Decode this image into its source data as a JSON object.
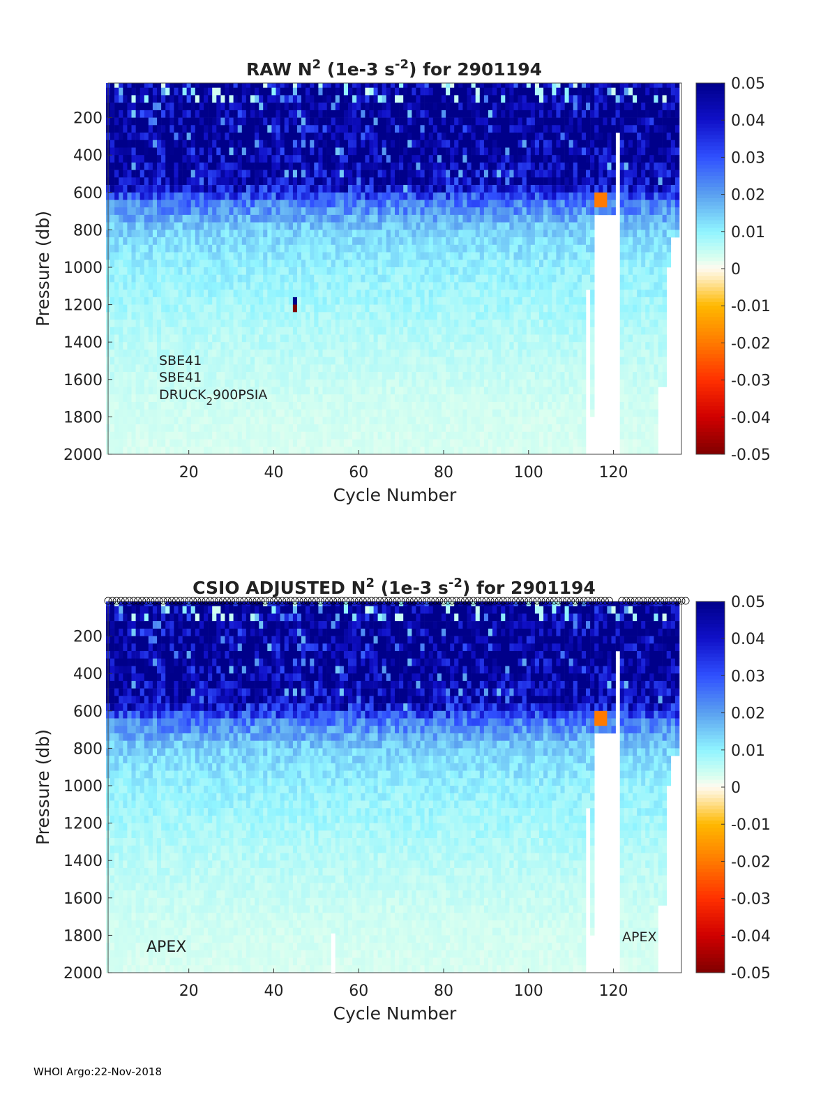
{
  "footer": "WHOI Argo:22-Nov-2018",
  "colormap": {
    "stops": [
      [
        -0.05,
        "#800000"
      ],
      [
        -0.04,
        "#d00000"
      ],
      [
        -0.03,
        "#ff3000"
      ],
      [
        -0.02,
        "#ff7a00"
      ],
      [
        -0.01,
        "#ffb800"
      ],
      [
        -0.003,
        "#ffe9b0"
      ],
      [
        0,
        "#fffaf0"
      ],
      [
        0.003,
        "#d8fff0"
      ],
      [
        0.01,
        "#90f4ff"
      ],
      [
        0.02,
        "#5aa0f0"
      ],
      [
        0.03,
        "#3050ff"
      ],
      [
        0.04,
        "#1010c8"
      ],
      [
        0.05,
        "#00008a"
      ]
    ]
  },
  "chart_data": [
    {
      "type": "heatmap",
      "title": "RAW N",
      "title_sup": "2",
      "title_mid": " (1e-3 s",
      "title_sup2": "-2",
      "title_end": ") for 2901194",
      "xlabel": "Cycle Number",
      "ylabel": "Pressure (db)",
      "xlim": [
        1,
        136
      ],
      "ylim": [
        15,
        2000
      ],
      "xticks": [
        "20",
        "40",
        "60",
        "80",
        "100",
        "120"
      ],
      "yticks": [
        "200",
        "400",
        "600",
        "800",
        "1000",
        "1200",
        "1400",
        "1600",
        "1800",
        "2000"
      ],
      "clim": [
        -0.05,
        0.05
      ],
      "cticks": [
        "0.05",
        "0.04",
        "0.03",
        "0.02",
        "0.01",
        "0",
        "-0.01",
        "-0.02",
        "-0.03",
        "-0.04",
        "-0.05"
      ],
      "mean_profile": {
        "pressure": [
          15,
          300,
          550,
          650,
          800,
          1000,
          1200,
          1400,
          1700,
          2000
        ],
        "value": [
          0.05,
          0.05,
          0.045,
          0.025,
          0.014,
          0.01,
          0.008,
          0.006,
          0.004,
          0.003
        ]
      },
      "annotations": [
        "SBE41",
        "SBE41",
        "DRUCK",
        "2",
        "900PSIA"
      ],
      "anomaly": {
        "cycle": 45,
        "pressure": [
          1150,
          1250
        ],
        "values": [
          0.05,
          -0.05
        ]
      },
      "show_markers": false
    },
    {
      "type": "heatmap",
      "title": "CSIO  ADJUSTED N",
      "title_sup": "2",
      "title_mid": " (1e-3 s",
      "title_sup2": "-2",
      "title_end": ") for 2901194",
      "xlabel": "Cycle Number",
      "ylabel": "Pressure (db)",
      "xlim": [
        1,
        136
      ],
      "ylim": [
        15,
        2000
      ],
      "xticks": [
        "20",
        "40",
        "60",
        "80",
        "100",
        "120"
      ],
      "yticks": [
        "200",
        "400",
        "600",
        "800",
        "1000",
        "1200",
        "1400",
        "1600",
        "1800",
        "2000"
      ],
      "clim": [
        -0.05,
        0.05
      ],
      "cticks": [
        "0.05",
        "0.04",
        "0.03",
        "0.02",
        "0.01",
        "0",
        "-0.01",
        "-0.02",
        "-0.03",
        "-0.04",
        "-0.05"
      ],
      "mean_profile": {
        "pressure": [
          15,
          300,
          550,
          650,
          800,
          1000,
          1200,
          1400,
          1700,
          2000
        ],
        "value": [
          0.05,
          0.05,
          0.045,
          0.025,
          0.014,
          0.01,
          0.008,
          0.006,
          0.004,
          0.003
        ]
      },
      "annotations": [
        "APEX",
        "APEX"
      ],
      "show_markers": true
    }
  ]
}
